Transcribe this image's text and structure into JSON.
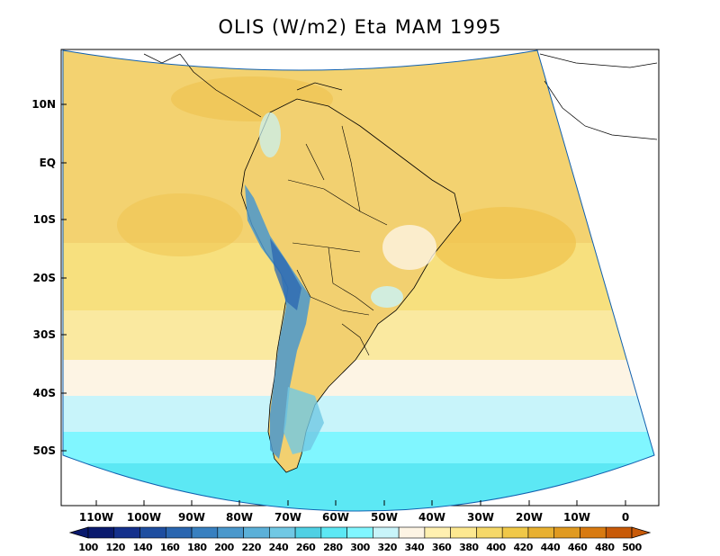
{
  "title": "OLIS (W/m2) Eta MAM 1995",
  "lat_ticks": [
    "10N",
    "EQ",
    "10S",
    "20S",
    "30S",
    "40S",
    "50S"
  ],
  "lon_ticks": [
    "110W",
    "100W",
    "90W",
    "80W",
    "70W",
    "60W",
    "50W",
    "40W",
    "30W",
    "20W",
    "10W",
    "0"
  ],
  "colorbar": {
    "labels": [
      "100",
      "120",
      "140",
      "160",
      "180",
      "200",
      "220",
      "240",
      "260",
      "280",
      "300",
      "320",
      "340",
      "360",
      "380",
      "400",
      "420",
      "440",
      "460",
      "480",
      "500"
    ],
    "colors": [
      "#0a1a6e",
      "#14308c",
      "#1e4ea0",
      "#2a66b0",
      "#3880c0",
      "#4a98cc",
      "#5bb0d8",
      "#70c8e4",
      "#4fd0e4",
      "#5ce8f4",
      "#80f6ff",
      "#c8f4fa",
      "#fdf4e4",
      "#fff0b0",
      "#fde890",
      "#f6d868",
      "#f0c848",
      "#e8b030",
      "#e09a20",
      "#d87a10",
      "#c85a08"
    ],
    "cmin": 100,
    "cmax": 500
  },
  "fields": {
    "ocean_north": "#f0cc60",
    "ocean_mid": "#f6dc80",
    "ocean_band_40S": "#fdf4e4",
    "ocean_band_45S": "#c8f4fa",
    "ocean_band_50S": "#80f6ff",
    "ocean_band_55S": "#5ce8f4",
    "andes_low": "#4a98cc",
    "andes_high": "#2a66b0"
  }
}
